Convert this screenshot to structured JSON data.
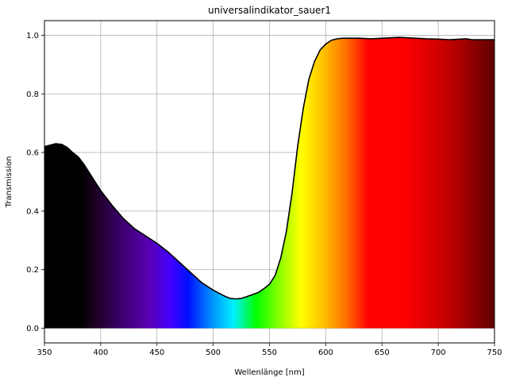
{
  "chart_data": {
    "type": "line",
    "title": "universalindikator_sauer1",
    "xlabel": "Wellenlänge [nm]",
    "ylabel": "Transmission",
    "xlim": [
      350,
      750
    ],
    "ylim": [
      -0.05,
      1.05
    ],
    "xticks": [
      350,
      400,
      450,
      500,
      550,
      600,
      650,
      700,
      750
    ],
    "yticks": [
      0.0,
      0.2,
      0.4,
      0.6,
      0.8,
      1.0
    ],
    "xtick_labels": [
      "350",
      "400",
      "450",
      "500",
      "550",
      "600",
      "650",
      "700",
      "750"
    ],
    "ytick_labels": [
      "0.0",
      "0.2",
      "0.4",
      "0.6",
      "0.8",
      "1.0"
    ],
    "grid": true,
    "fill": "visible spectrum color gradient under curve",
    "line_color": "#000000",
    "series": [
      {
        "x": [
          350,
          355,
          360,
          365,
          370,
          375,
          380,
          385,
          390,
          395,
          400,
          410,
          420,
          430,
          440,
          450,
          460,
          470,
          480,
          490,
          500,
          510,
          515,
          520,
          525,
          530,
          540,
          545,
          550,
          555,
          560,
          565,
          570,
          575,
          580,
          585,
          590,
          595,
          600,
          605,
          610,
          615,
          620,
          625,
          630,
          640,
          650,
          660,
          665,
          670,
          680,
          690,
          700,
          710,
          720,
          725,
          730,
          740,
          750
        ],
        "y": [
          0.62,
          0.625,
          0.63,
          0.628,
          0.618,
          0.6,
          0.585,
          0.56,
          0.53,
          0.5,
          0.47,
          0.42,
          0.375,
          0.34,
          0.315,
          0.29,
          0.26,
          0.225,
          0.19,
          0.155,
          0.13,
          0.11,
          0.102,
          0.1,
          0.102,
          0.108,
          0.122,
          0.135,
          0.15,
          0.18,
          0.24,
          0.33,
          0.46,
          0.62,
          0.75,
          0.85,
          0.91,
          0.95,
          0.97,
          0.983,
          0.988,
          0.99,
          0.99,
          0.99,
          0.99,
          0.988,
          0.99,
          0.992,
          0.993,
          0.992,
          0.99,
          0.988,
          0.987,
          0.985,
          0.987,
          0.988,
          0.985,
          0.985,
          0.985
        ]
      }
    ]
  }
}
